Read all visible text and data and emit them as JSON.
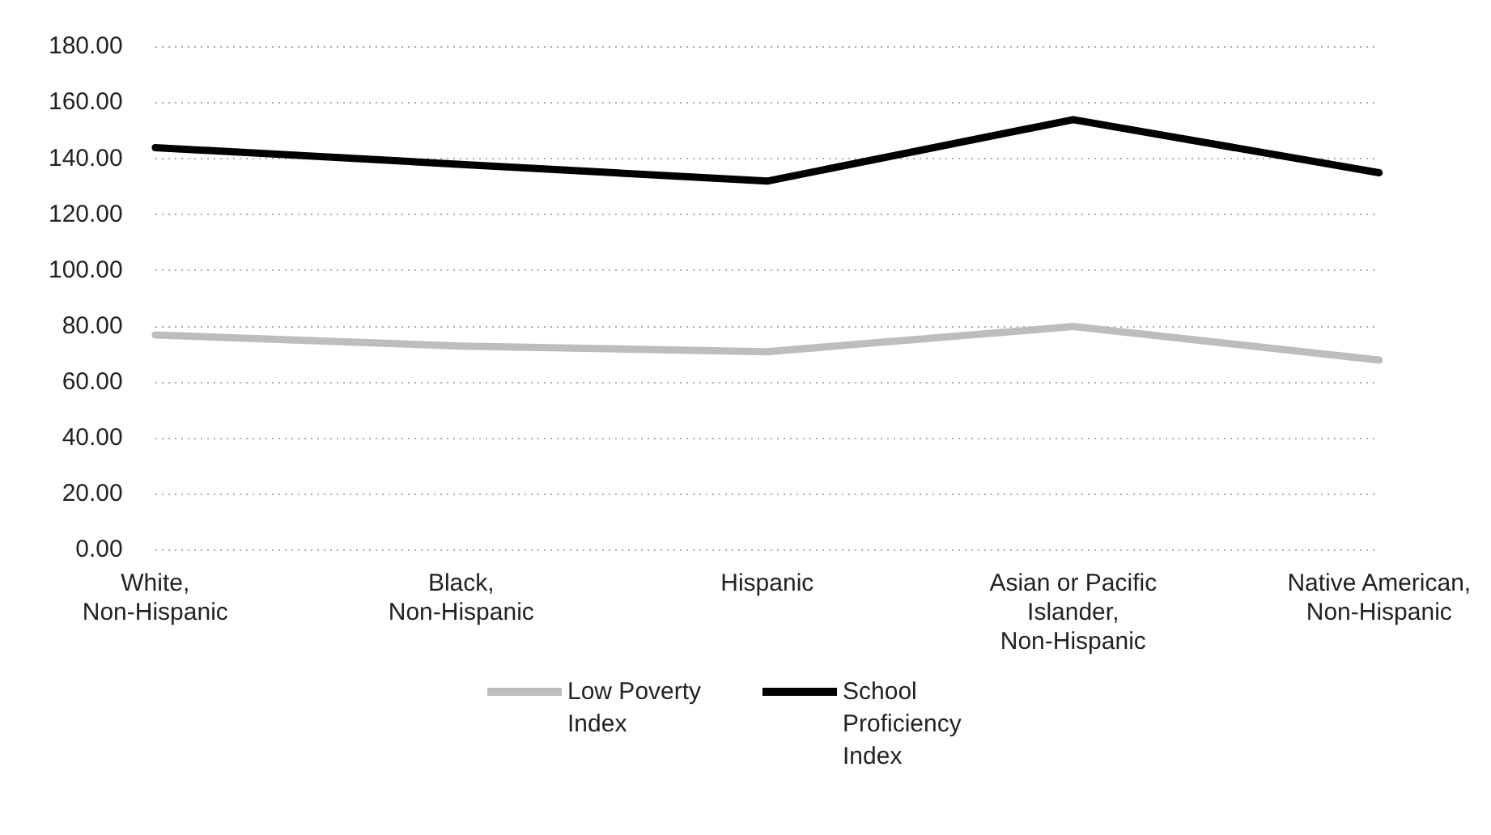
{
  "chart_data": {
    "type": "line",
    "categories": [
      "White, Non-Hispanic",
      "Black, Non-Hispanic",
      "Hispanic",
      "Asian or Pacific Islander, Non-Hispanic",
      "Native American, Non-Hispanic"
    ],
    "series": [
      {
        "name": "Low Poverty Index",
        "color": "#bdbdbd",
        "values": [
          77,
          73,
          71,
          80,
          68
        ]
      },
      {
        "name": "School Proficiency Index",
        "color": "#000000",
        "values": [
          144,
          138,
          132,
          154,
          135
        ]
      }
    ],
    "ylim": [
      0,
      180
    ],
    "yticks": [
      {
        "value": 0,
        "label": "0.00"
      },
      {
        "value": 20,
        "label": "20.00"
      },
      {
        "value": 40,
        "label": "40.00"
      },
      {
        "value": 60,
        "label": "60.00"
      },
      {
        "value": 80,
        "label": "80.00"
      },
      {
        "value": 100,
        "label": "100.00"
      },
      {
        "value": 120,
        "label": "120.00"
      },
      {
        "value": 140,
        "label": "140.00"
      },
      {
        "value": 160,
        "label": "160.00"
      },
      {
        "value": 180,
        "label": "180.00"
      }
    ],
    "grid": "y",
    "legend": "bottom",
    "marker": "none",
    "line_style": "solid"
  }
}
